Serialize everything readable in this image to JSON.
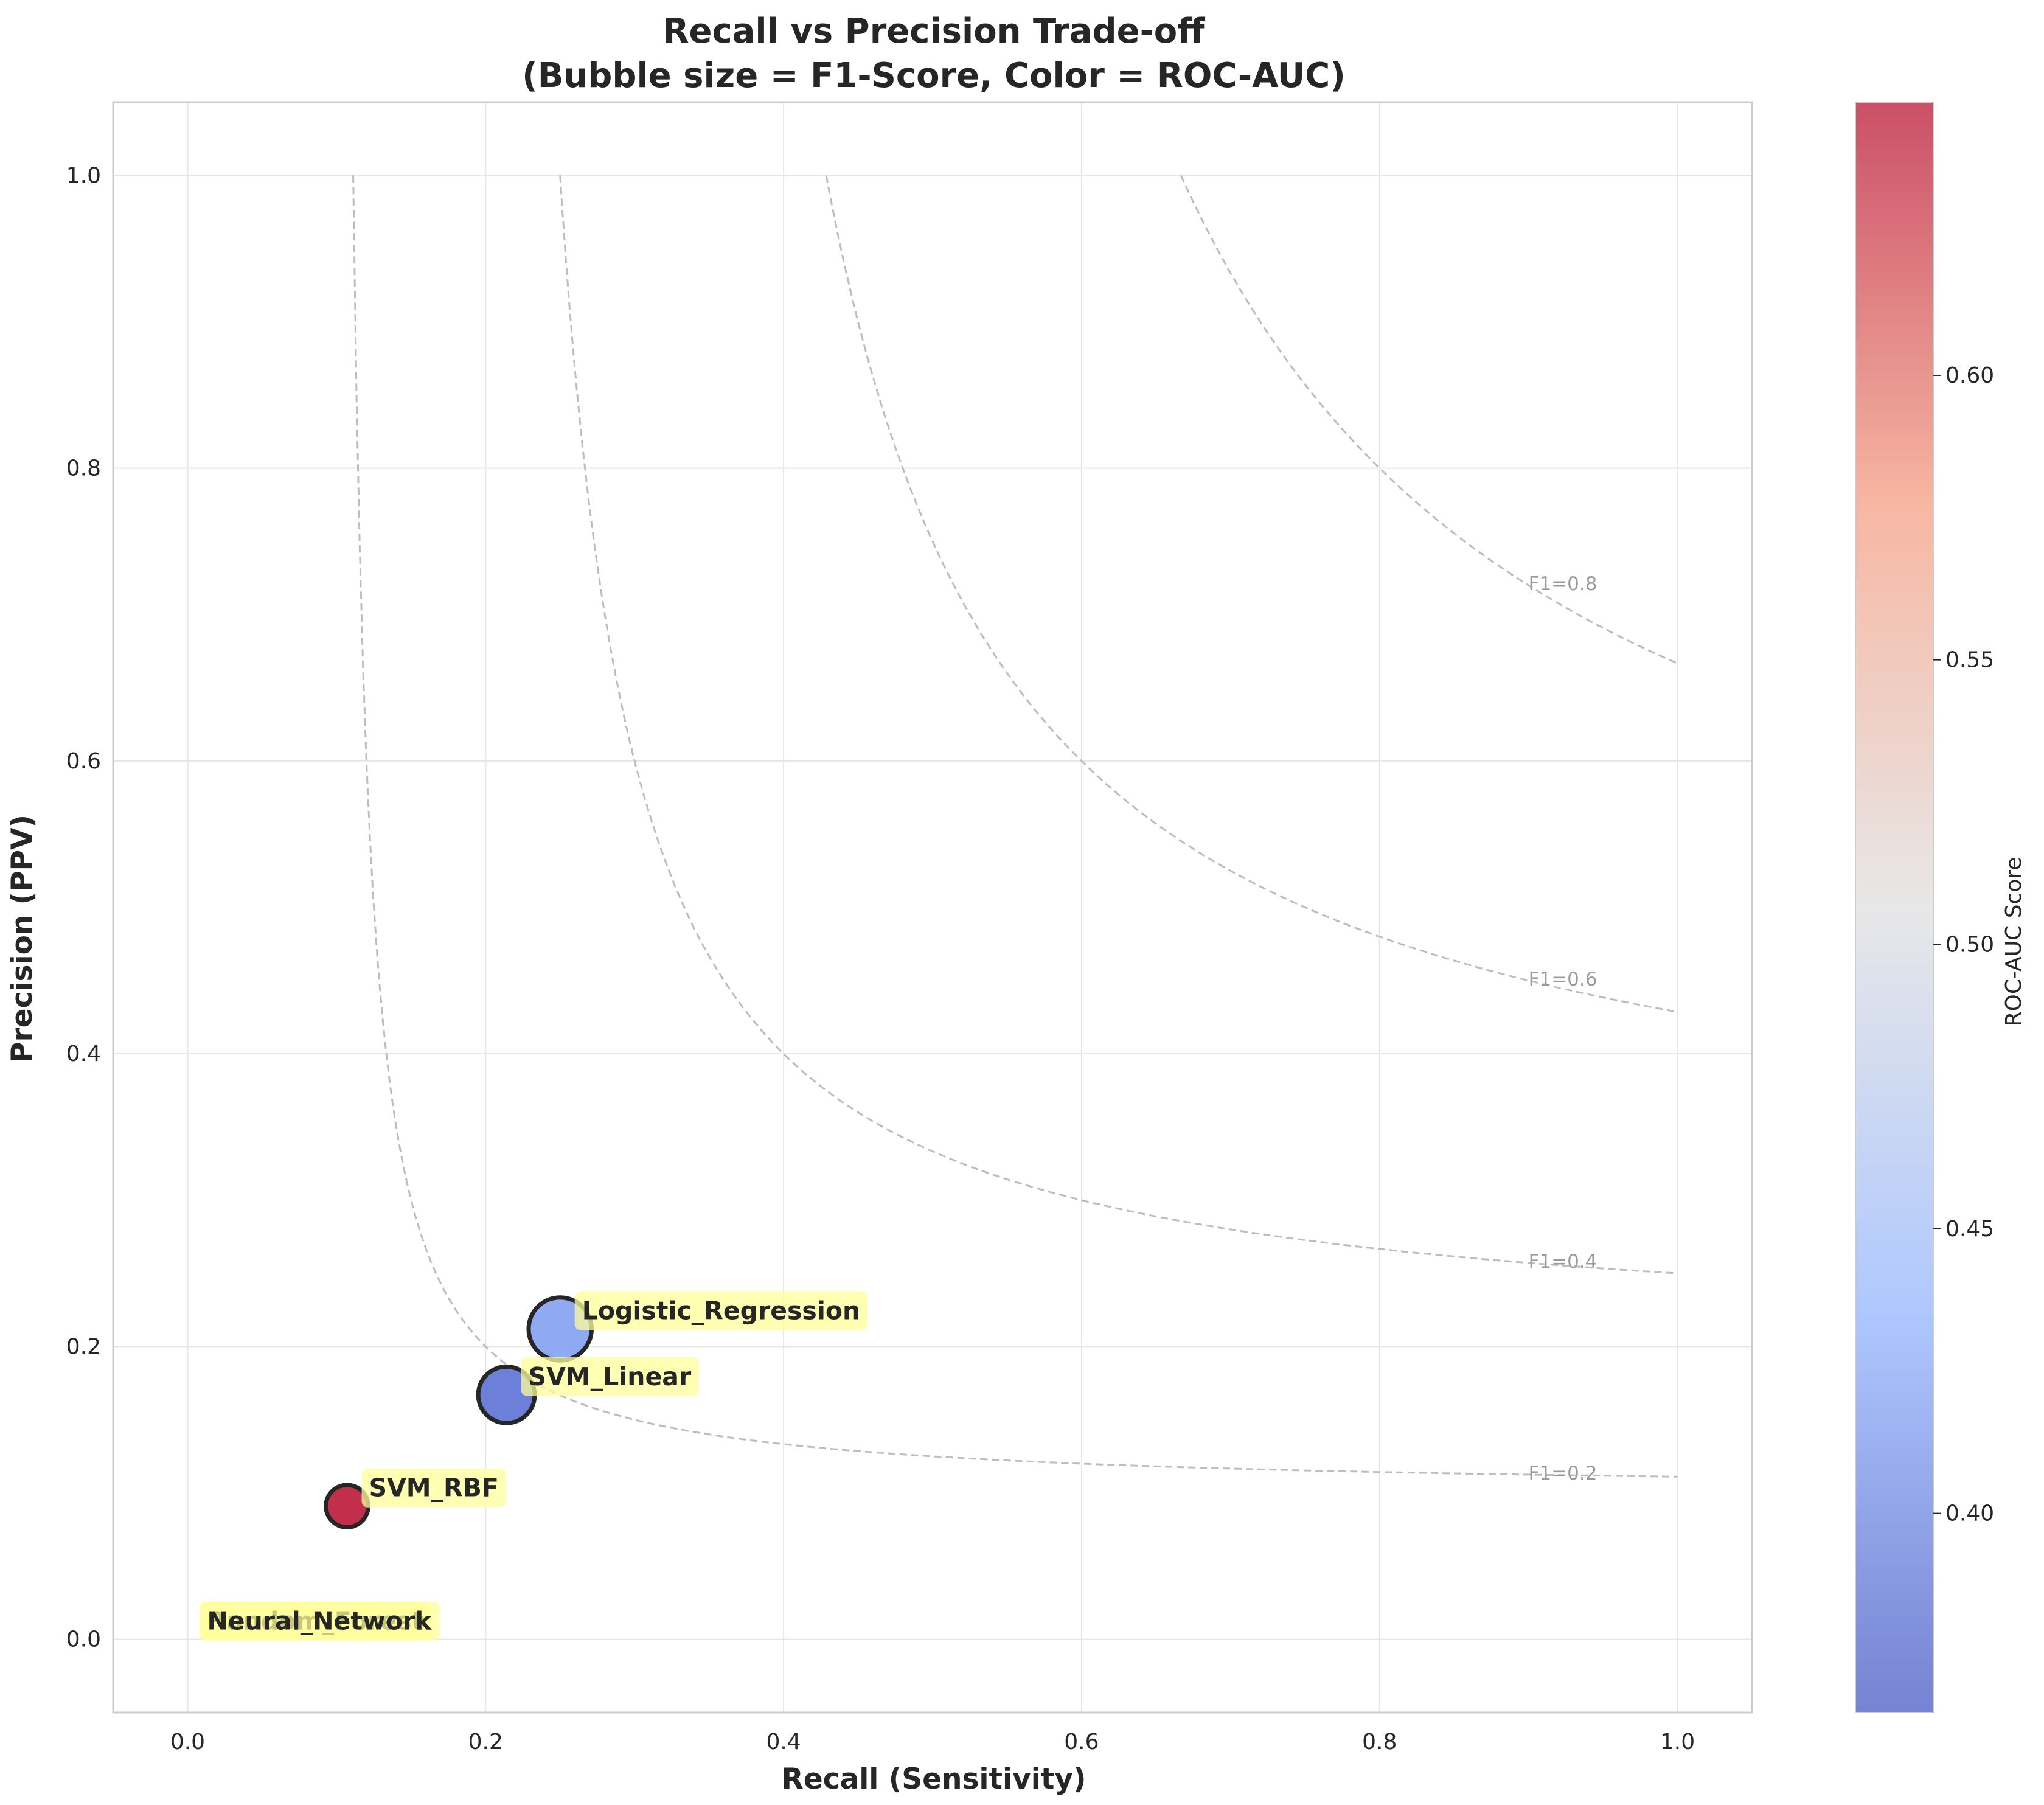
{
  "chart_data": {
    "type": "scatter",
    "title_line1": "Recall vs Precision Trade-off",
    "title_line2": "(Bubble size = F1-Score, Color = ROC-AUC)",
    "xlabel": "Recall (Sensitivity)",
    "ylabel": "Precision (PPV)",
    "xlim": [
      -0.05,
      1.05
    ],
    "ylim": [
      -0.05,
      1.05
    ],
    "x_ticks": [
      "0.0",
      "0.2",
      "0.4",
      "0.6",
      "0.8",
      "1.0"
    ],
    "y_ticks": [
      "0.0",
      "0.2",
      "0.4",
      "0.6",
      "0.8",
      "1.0"
    ],
    "grid": true,
    "colorbar": {
      "label": "ROC-AUC Score",
      "range": [
        0.365,
        0.648
      ],
      "ticks": [
        "0.40",
        "0.45",
        "0.50",
        "0.55",
        "0.60"
      ],
      "colormap": "coolwarm"
    },
    "iso_f1_curves": [
      {
        "f1": 0.2,
        "label": "F1=0.2"
      },
      {
        "f1": 0.4,
        "label": "F1=0.4"
      },
      {
        "f1": 0.6,
        "label": "F1=0.6"
      },
      {
        "f1": 0.8,
        "label": "F1=0.8"
      }
    ],
    "points": [
      {
        "name": "Logistic_Regression",
        "recall": 0.25,
        "precision": 0.212,
        "f1": 0.229,
        "roc_auc": 0.42
      },
      {
        "name": "SVM_Linear",
        "recall": 0.214,
        "precision": 0.167,
        "f1": 0.188,
        "roc_auc": 0.385
      },
      {
        "name": "SVM_RBF",
        "recall": 0.107,
        "precision": 0.091,
        "f1": 0.098,
        "roc_auc": 0.645
      },
      {
        "name": "Random_Forest",
        "recall": 0.0,
        "precision": 0.0,
        "f1": 0.0,
        "roc_auc": 0.5
      },
      {
        "name": "Neural_Network",
        "recall": 0.0,
        "precision": 0.0,
        "f1": 0.0,
        "roc_auc": 0.5
      }
    ],
    "colors": {
      "label_box": "#ffff99",
      "bubble_edge": "#262626",
      "grid": "#e6e6e6",
      "spine": "#cccccc",
      "contour": "#bdbdbd"
    }
  }
}
